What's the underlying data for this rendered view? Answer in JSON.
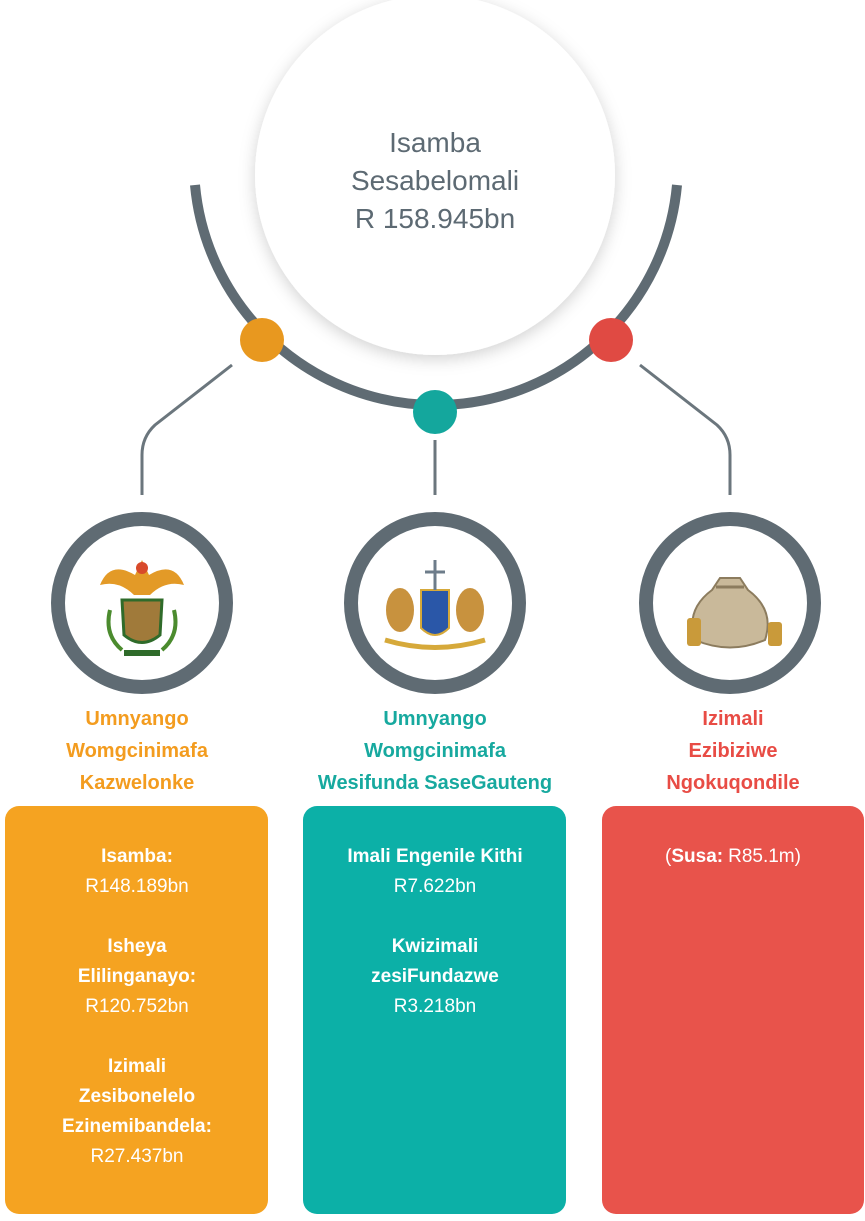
{
  "title": [
    "Isamba",
    "Sesabelomali",
    "R 158.945bn"
  ],
  "branches": [
    {
      "heading": [
        "Umnyango",
        "Womgcinimafa",
        "Kazwelonke"
      ],
      "items": [
        {
          "label": [
            "Isamba:"
          ],
          "value": "R148.189bn"
        },
        {
          "label": [
            "Isheya",
            "Elilinganayo:"
          ],
          "value": "R120.752bn"
        },
        {
          "label": [
            "Izimali",
            "Zesibonelelo",
            "Ezinemibandela:"
          ],
          "value": "R27.437bn"
        }
      ]
    },
    {
      "heading": [
        "Umnyango",
        "Womgcinimafa",
        "Wesifunda SaseGauteng"
      ],
      "items": [
        {
          "label": [
            "Imali Engenile Kithi"
          ],
          "value": "R7.622bn"
        },
        {
          "label": [
            "Kwizimali",
            "zesiFundazwe"
          ],
          "value": "R3.218bn"
        }
      ]
    },
    {
      "heading": [
        "Izimali",
        "Ezibiziwe",
        "Ngokuqondile"
      ],
      "note": {
        "open": "(",
        "label": "Susa:",
        "value": "R85.1m",
        "close": ")"
      }
    }
  ]
}
